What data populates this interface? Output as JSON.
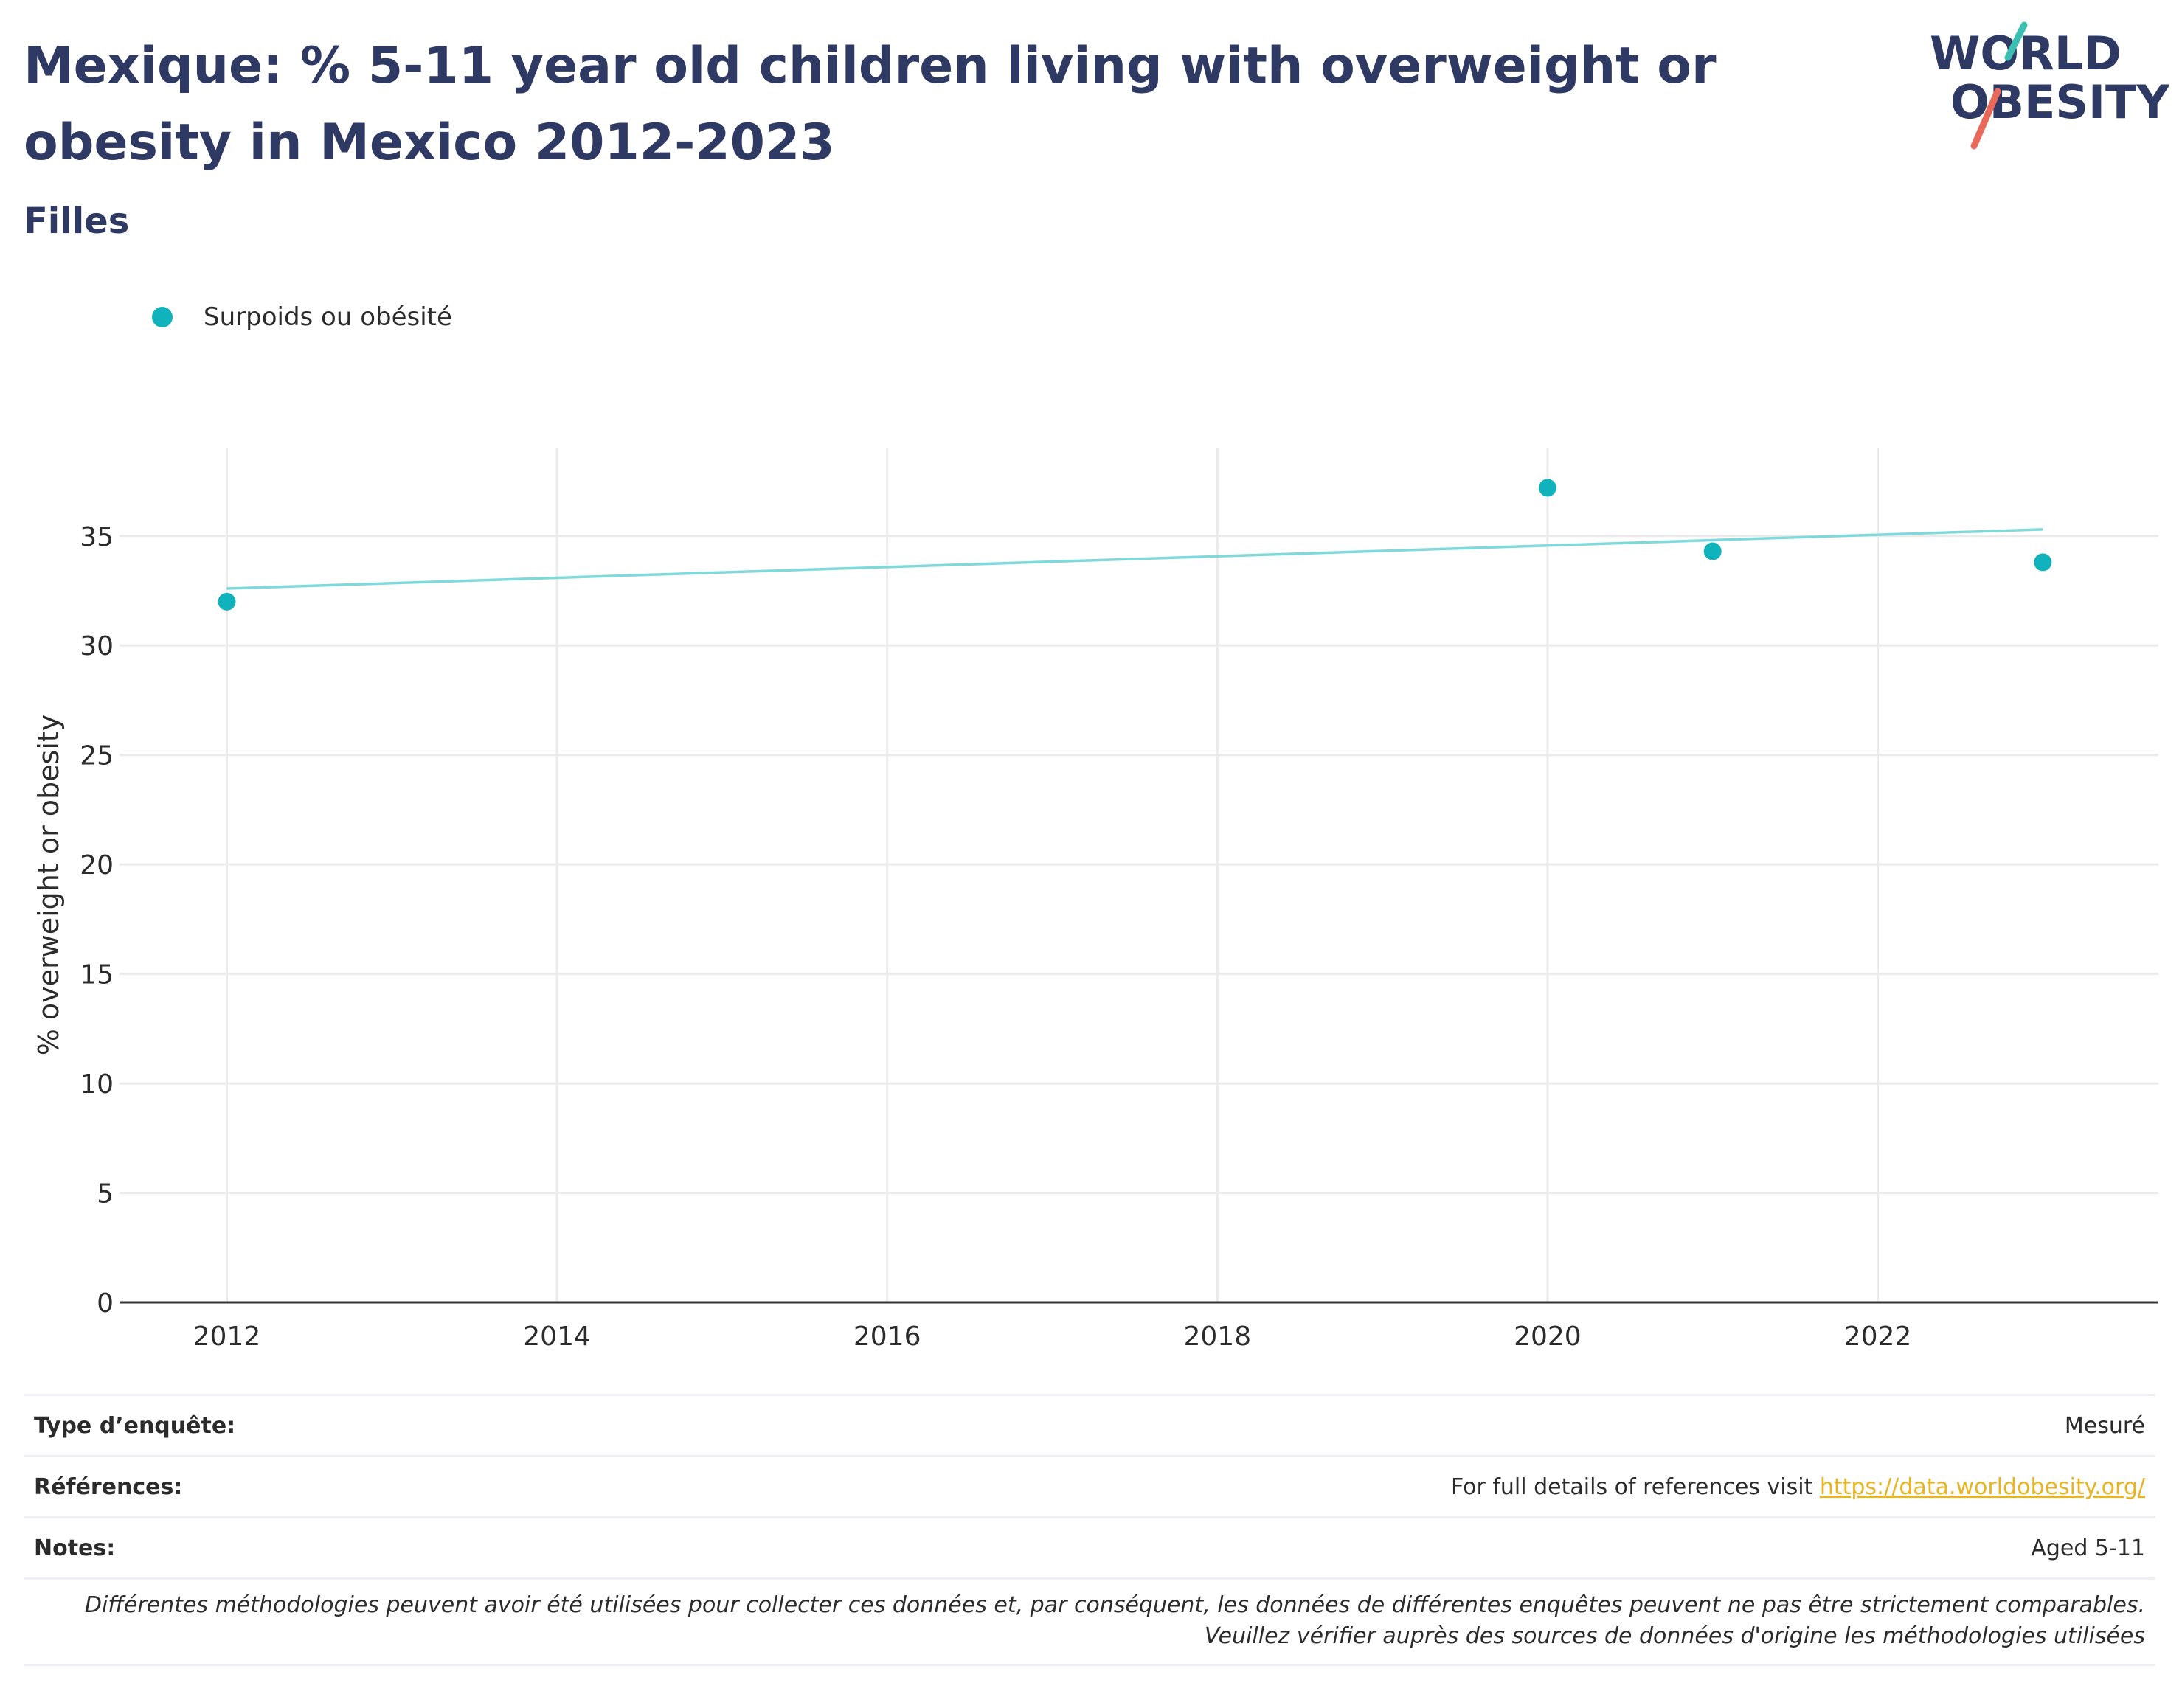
{
  "header": {
    "title": "Mexique: % 5-11 year old children living with overweight or obesity in Mexico 2012-2023",
    "subtitle": "Filles",
    "logo_line1": "WORLD",
    "logo_line2": "OBESITY"
  },
  "legend": {
    "label": "Surpoids ou obésité"
  },
  "chart_data": {
    "type": "scatter",
    "title": "Mexique: % 5-11 year old children living with overweight or obesity in Mexico 2012-2023",
    "subtitle": "Filles",
    "xlabel": "",
    "ylabel": "% overweight or obesity",
    "xlim": [
      2011.35,
      2023.7
    ],
    "ylim": [
      0,
      39
    ],
    "x_ticks": [
      2012,
      2014,
      2016,
      2018,
      2020,
      2022
    ],
    "y_ticks": [
      0,
      5,
      10,
      15,
      20,
      25,
      30,
      35
    ],
    "grid": true,
    "legend_position": "top-left",
    "series": [
      {
        "name": "Surpoids ou obésité",
        "color": "#10b3bb",
        "x": [
          2012,
          2020,
          2021,
          2023
        ],
        "y": [
          32.0,
          37.2,
          34.3,
          33.8
        ]
      }
    ],
    "trendline": {
      "color": "#7fd8da",
      "x": [
        2012,
        2023
      ],
      "y": [
        32.6,
        35.3
      ]
    }
  },
  "footer": {
    "survey_type_label": "Type d’enquête:",
    "survey_type_value": "Mesuré",
    "references_label": "Références:",
    "references_text": "For full details of references visit",
    "references_link": "https://data.worldobesity.org/",
    "notes_label": "Notes:",
    "notes_value": "Aged 5-11",
    "disclaimer": "Différentes méthodologies peuvent avoir été utilisées pour collecter ces données et, par conséquent, les données de différentes enquêtes peuvent ne pas être strictement comparables. Veuillez vérifier auprès des sources de données d'origine les méthodologies utilisées"
  },
  "colors": {
    "title": "#2e3a63",
    "accent_teal": "#10b3bb",
    "logo_teal": "#3bbfb2",
    "logo_red": "#e8695a",
    "link": "#e8b422"
  }
}
